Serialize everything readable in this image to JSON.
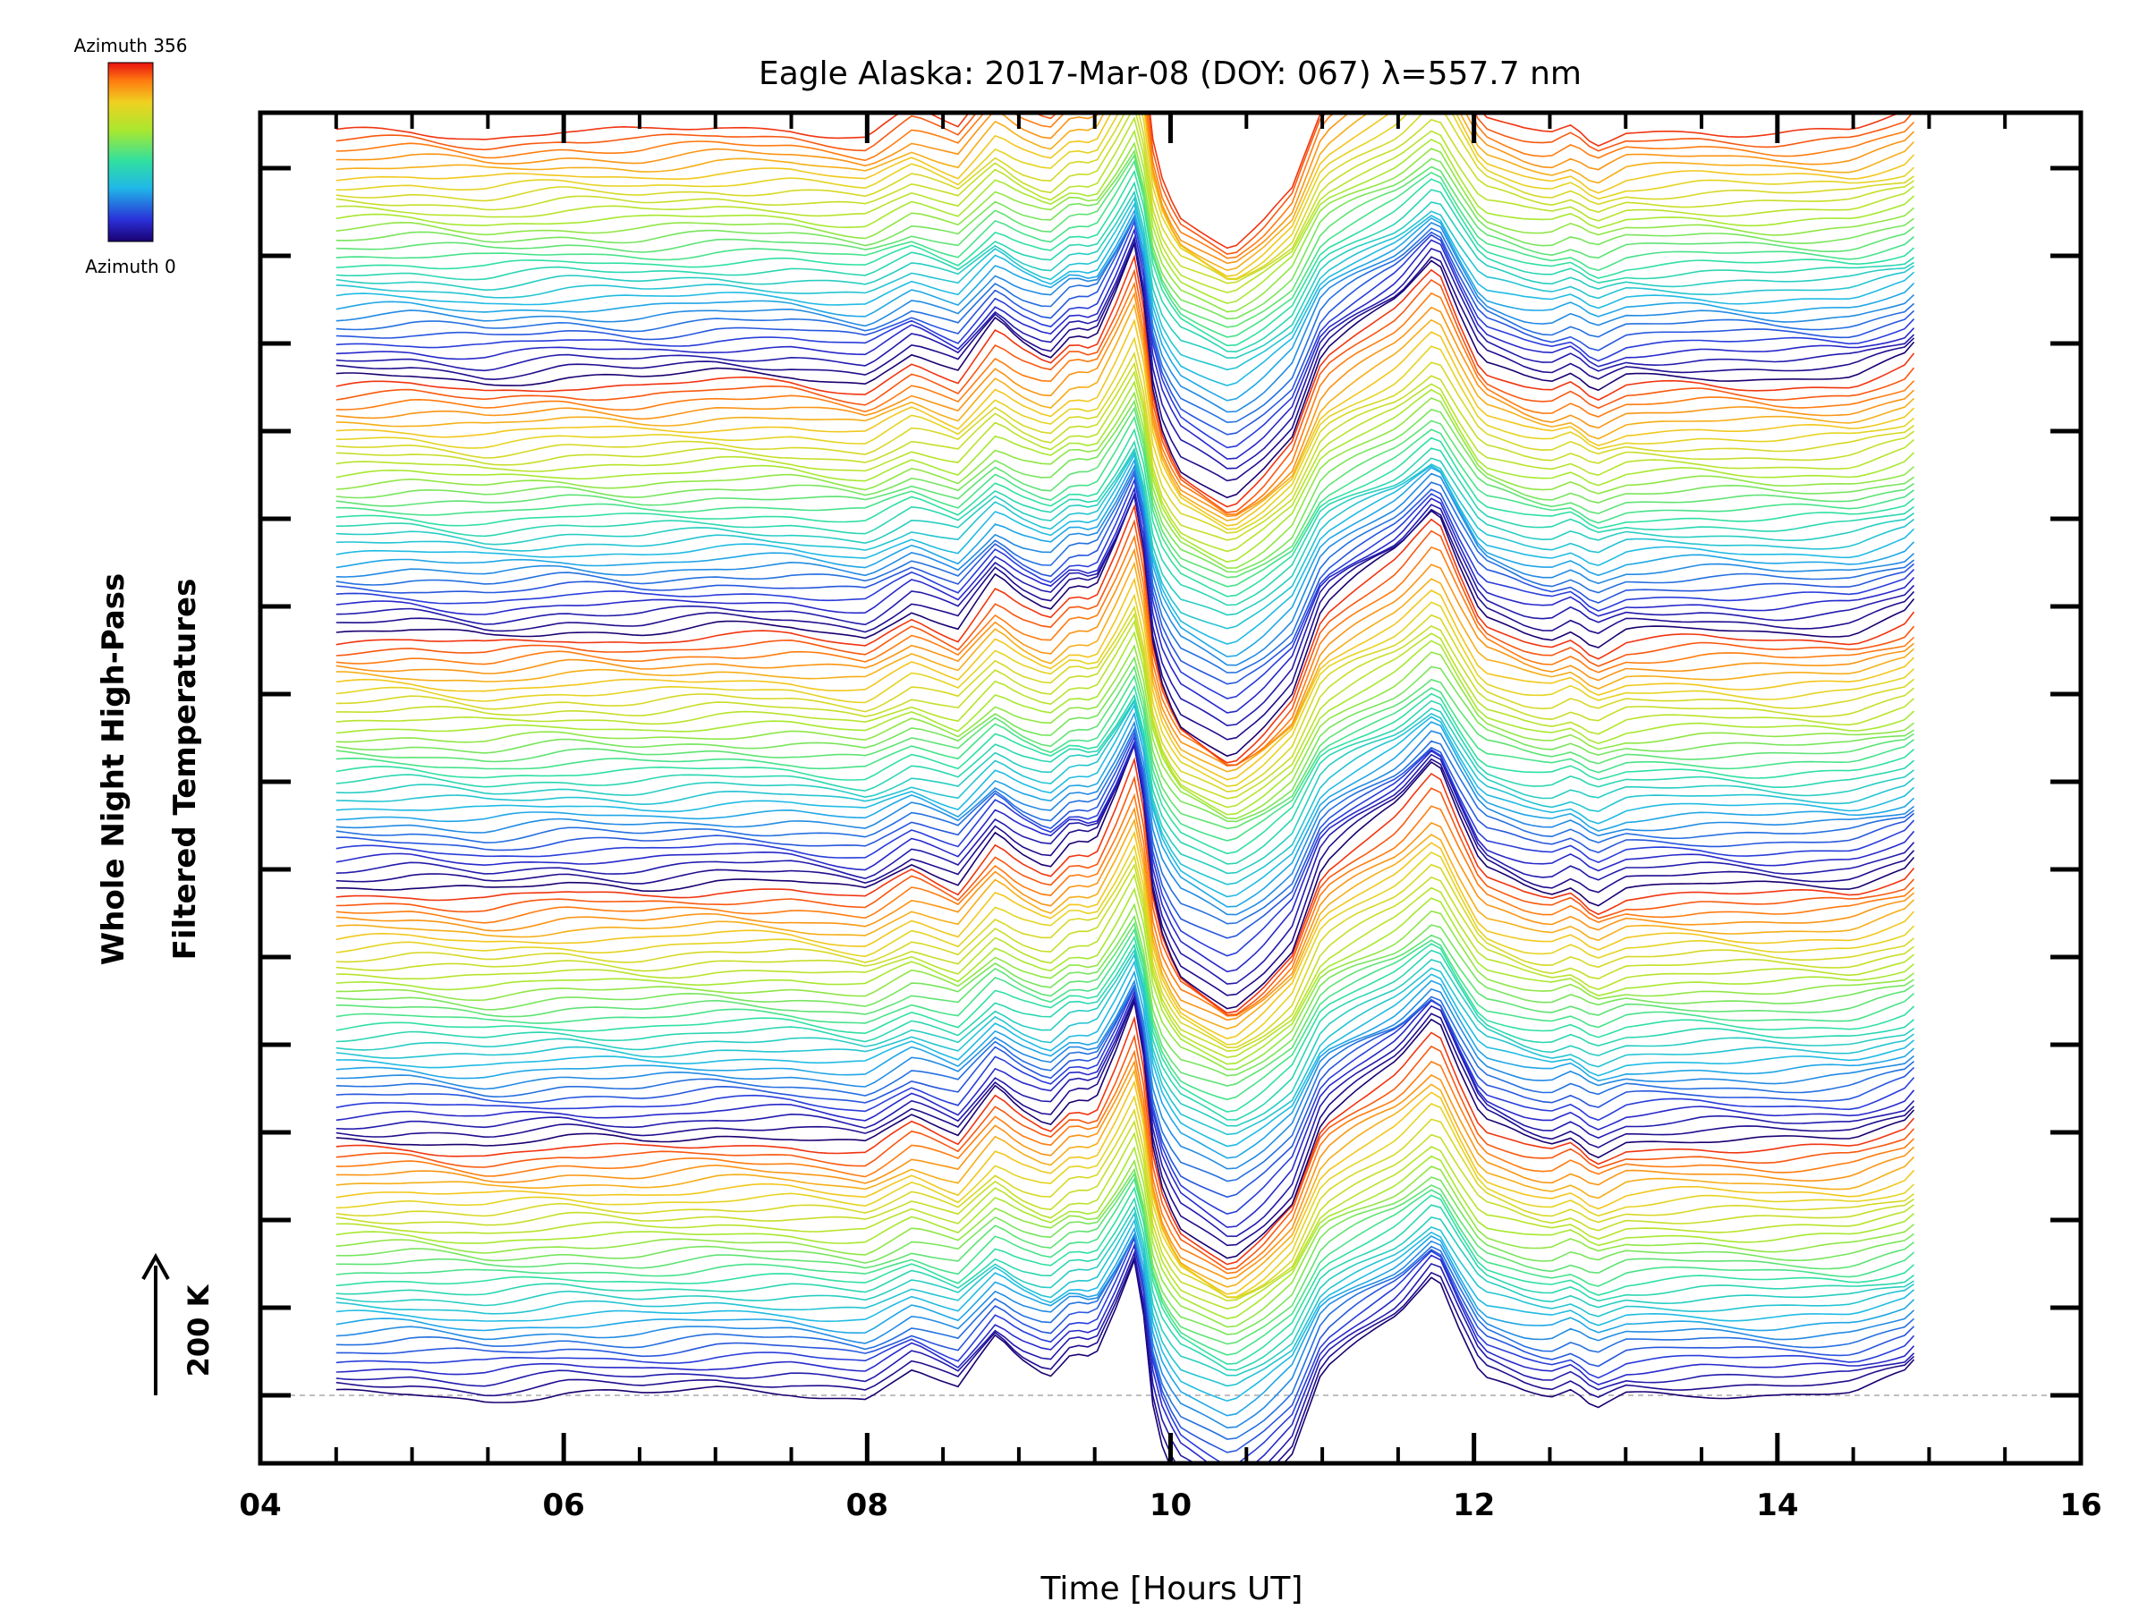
{
  "chart_data": {
    "type": "line",
    "title": "Eagle Alaska: 2017-Mar-08 (DOY: 067) λ=557.7 nm",
    "xlabel": "Time [Hours UT]",
    "ylabel_lines": [
      "Whole Night High-Pass",
      "Filtered Temperatures"
    ],
    "xlim": [
      4,
      16
    ],
    "x_tick_labels": [
      "04",
      "06",
      "08",
      "10",
      "12",
      "14",
      "16"
    ],
    "x_ticks": [
      4,
      6,
      8,
      10,
      12,
      14,
      16
    ],
    "x_data_range": [
      4.5,
      14.9
    ],
    "colorbar": {
      "top_label": "Azimuth 356",
      "bottom_label": "Azimuth 0",
      "min": 0,
      "max": 356,
      "colormap": "rainbow"
    },
    "scale_bar": {
      "label": "200 K"
    },
    "series_count": 145,
    "stacked_offset": true,
    "baseline_dashed": true,
    "grid": false,
    "legend": "colorbar-top-left",
    "profile": {
      "description_keys": "time in hours UT vs relative filtered temperature (arbitrary stacked units)",
      "x": [
        4.5,
        5.0,
        5.5,
        6.0,
        6.5,
        7.0,
        7.5,
        8.0,
        8.3,
        8.6,
        8.85,
        9.0,
        9.2,
        9.35,
        9.5,
        9.65,
        9.78,
        9.9,
        10.05,
        10.2,
        10.4,
        10.6,
        10.8,
        11.0,
        11.2,
        11.5,
        11.75,
        11.9,
        12.05,
        12.2,
        12.35,
        12.5,
        12.65,
        12.8,
        13.0,
        13.5,
        14.0,
        14.5,
        14.85,
        14.9
      ],
      "y": [
        0,
        2,
        -5,
        3,
        0,
        6,
        5,
        -5,
        25,
        5,
        55,
        35,
        20,
        45,
        40,
        90,
        140,
        -30,
        -85,
        -100,
        -120,
        -95,
        -60,
        25,
        50,
        80,
        125,
        70,
        20,
        10,
        0,
        -5,
        5,
        -15,
        0,
        3,
        0,
        2,
        20,
        30
      ]
    },
    "colors": {
      "axes": "#000000",
      "background": "#ffffff",
      "baseline": "#aaaaaa"
    }
  }
}
